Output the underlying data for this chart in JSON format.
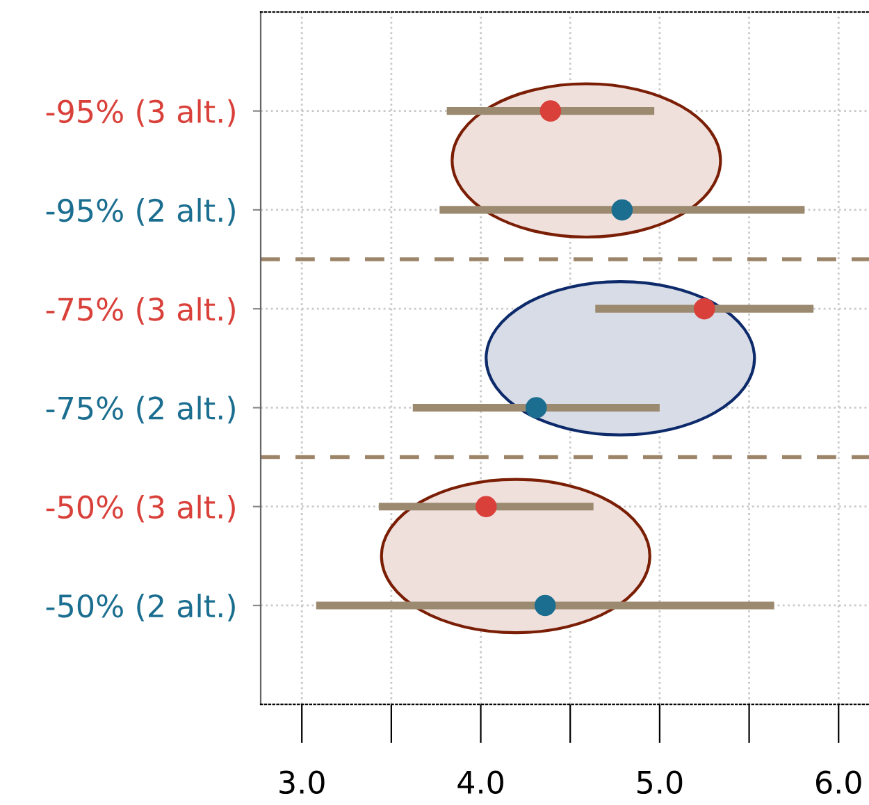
{
  "chart_data": {
    "type": "scatter",
    "orientation": "horizontal",
    "categories": [
      "-95% (3 alt.)",
      "-95% (2 alt.)",
      "-75% (3 alt.)",
      "-75% (2 alt.)",
      "-50% (3 alt.)",
      "-50% (2 alt.)"
    ],
    "values": [
      4.39,
      4.79,
      5.25,
      4.31,
      4.03,
      4.36
    ],
    "errors": [
      0.58,
      1.02,
      0.61,
      0.69,
      0.6,
      1.28
    ],
    "colors": [
      "#d9403a",
      "#1b6e8f",
      "#d9403a",
      "#1b6e8f",
      "#d9403a",
      "#1b6e8f"
    ],
    "xlim": [
      2.77,
      6.17
    ],
    "xticks": [
      {
        "value": 3.0,
        "label": "3.0"
      },
      {
        "value": 3.5,
        "label": null
      },
      {
        "value": 4.0,
        "label": "4.0"
      },
      {
        "value": 4.5,
        "label": null
      },
      {
        "value": 5.0,
        "label": "5.0"
      },
      {
        "value": 5.5,
        "label": null
      },
      {
        "value": 6.0,
        "label": "6.0"
      }
    ],
    "grid": true,
    "marker": "circle"
  }
}
